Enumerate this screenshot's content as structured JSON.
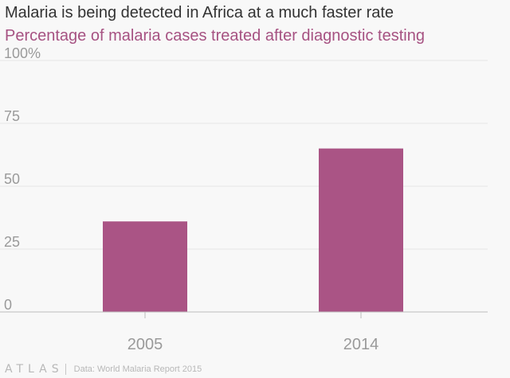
{
  "title": "Malaria is being detected in Africa at a much faster rate",
  "subtitle": "Percentage of malaria cases treated after diagnostic testing",
  "footer": {
    "logo": "ATLAS",
    "source": "Data: World Malaria Report 2015"
  },
  "colors": {
    "bar": "#aa5485",
    "subtitle": "#a65282",
    "grid": "#e6e6e6",
    "axis": "#bdbdbd",
    "ticks": "#9a9a9a"
  },
  "chart_data": {
    "type": "bar",
    "title": "Malaria is being detected in Africa at a much faster rate",
    "subtitle": "Percentage of malaria cases treated after diagnostic testing",
    "categories": [
      "2005",
      "2014"
    ],
    "values": [
      36,
      65
    ],
    "ylim": [
      0,
      100
    ],
    "yticks": [
      0,
      25,
      50,
      75,
      100
    ],
    "ytick_labels": [
      "0",
      "25",
      "50",
      "75",
      "100%"
    ],
    "xlabel": "",
    "ylabel": "",
    "grid": true
  }
}
